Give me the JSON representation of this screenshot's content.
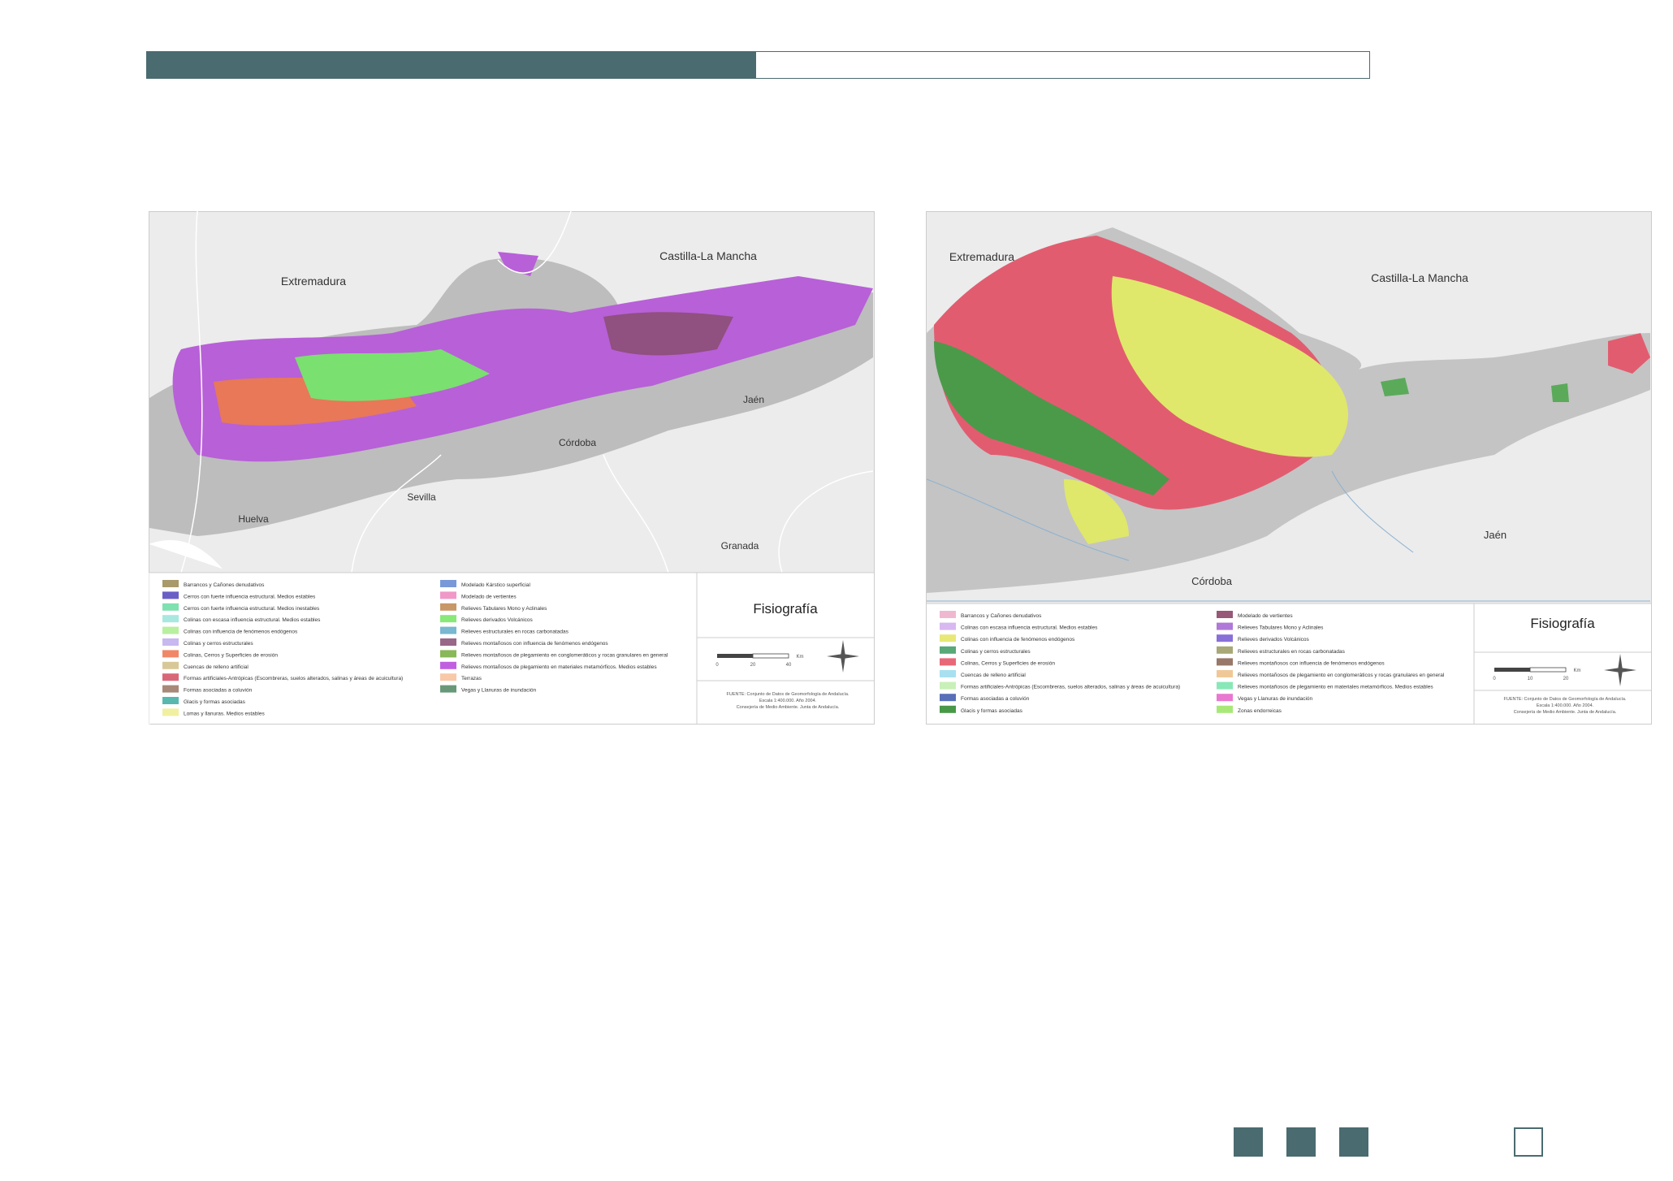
{
  "maps": [
    {
      "title": "Fisiografía",
      "regions": [
        "Extremadura",
        "Castilla-La Mancha",
        "Jaén",
        "Córdoba",
        "Sevilla",
        "Huelva",
        "Granada"
      ],
      "legend": [
        {
          "label": "Barrancos y Cañones denudativos",
          "color": "#a89a6a"
        },
        {
          "label": "Cerros con fuerte influencia estructural. Medios estables",
          "color": "#6a5fc7"
        },
        {
          "label": "Cerros con fuerte influencia estructural. Medios inestables",
          "color": "#7fe0b0"
        },
        {
          "label": "Colinas con escasa influencia estructural. Medios estables",
          "color": "#a8e8e0"
        },
        {
          "label": "Colinas con influencia de fenómenos endógenos",
          "color": "#b8f0a0"
        },
        {
          "label": "Colinas y cerros estructurales",
          "color": "#c8b8f0"
        },
        {
          "label": "Colinas, Cerros y Superficies de erosión",
          "color": "#f08868"
        },
        {
          "label": "Cuencas de relleno artificial",
          "color": "#d8c898"
        },
        {
          "label": "Formas artificiales-Antrópicas (Escombreras, suelos alterados, salinas y áreas de acuicultura)",
          "color": "#d86878"
        },
        {
          "label": "Formas asociadas a coluvión",
          "color": "#a88878"
        },
        {
          "label": "Glacis y formas asociadas",
          "color": "#58b8b0"
        },
        {
          "label": "Lomas y llanuras. Medios estables",
          "color": "#f0f0a0"
        },
        {
          "label": "Modelado Kárstico superficial",
          "color": "#7898d8"
        },
        {
          "label": "Modelado de vertientes",
          "color": "#f098c8"
        },
        {
          "label": "Relieves Tabulares Mono y Aclinales",
          "color": "#c89868"
        },
        {
          "label": "Relieves derivados Volcánicos",
          "color": "#88e878"
        },
        {
          "label": "Relieves estructurales en rocas carbonatadas",
          "color": "#78b8d0"
        },
        {
          "label": "Relieves montañosos con influencia de fenómenos endógenos",
          "color": "#986888"
        },
        {
          "label": "Relieves montañosos de plegamiento en conglomeráticos y rocas granulares en general",
          "color": "#88b858"
        },
        {
          "label": "Relieves montañosos de plegamiento en materiales metamórficos. Medios estables",
          "color": "#c060e0"
        },
        {
          "label": "Terrazas",
          "color": "#f8c8a8"
        },
        {
          "label": "Vegas y Llanuras de inundación",
          "color": "#689878"
        }
      ],
      "scale": [
        "0",
        "20",
        "40",
        "Km"
      ],
      "source": [
        "FUENTE: Conjunto de Datos de Geomorfología de Andalucía.",
        "Escala 1:400.000. Año 2004.",
        "Consejería de Medio Ambiente. Junta de Andalucía."
      ]
    },
    {
      "title": "Fisiografía",
      "regions": [
        "Extremadura",
        "Castilla-La Mancha",
        "Jaén",
        "Córdoba"
      ],
      "legend": [
        {
          "label": "Barrancos y Cañones denudativos",
          "color": "#f0b8d0"
        },
        {
          "label": "Colinas con escasa influencia estructural. Medios estables",
          "color": "#d8b8f0"
        },
        {
          "label": "Colinas con influencia de fenómenos endógenos",
          "color": "#e8e878"
        },
        {
          "label": "Colinas y cerros estructurales",
          "color": "#58a878"
        },
        {
          "label": "Colinas, Cerros y Superficies de erosión",
          "color": "#e86878"
        },
        {
          "label": "Cuencas de relleno artificial",
          "color": "#a8e0f0"
        },
        {
          "label": "Formas artificiales-Antrópicas (Escombreras, suelos alterados, salinas y áreas de acuicultura)",
          "color": "#c8f0b8"
        },
        {
          "label": "Formas asociadas a coluvión",
          "color": "#5870b8"
        },
        {
          "label": "Glacis y formas asociadas",
          "color": "#489848"
        },
        {
          "label": "Modelado de vertientes",
          "color": "#985878"
        },
        {
          "label": "Relieves Tabulares Mono y Aclinales",
          "color": "#b078d8"
        },
        {
          "label": "Relieves derivados Volcánicos",
          "color": "#8870d8"
        },
        {
          "label": "Relieves estructurales en rocas carbonatadas",
          "color": "#a8a878"
        },
        {
          "label": "Relieves montañosos con influencia de fenómenos endógenos",
          "color": "#987868"
        },
        {
          "label": "Relieves montañosos de plegamiento en conglomeráticos y rocas granulares en general",
          "color": "#f0c898"
        },
        {
          "label": "Relieves montañosos de plegamiento en materiales metamórficos. Medios estables",
          "color": "#88e8b8"
        },
        {
          "label": "Vegas y Llanuras de inundación",
          "color": "#e878d0"
        },
        {
          "label": "Zonas endorreicas",
          "color": "#a8e878"
        }
      ],
      "scale": [
        "0",
        "10",
        "20",
        "Km"
      ],
      "source": [
        "FUENTE: Conjunto de Datos de Geomorfología de Andalucía.",
        "Escala 1:400.000. Año 2004.",
        "Consejería de Medio Ambiente. Junta de Andalucía."
      ]
    }
  ]
}
